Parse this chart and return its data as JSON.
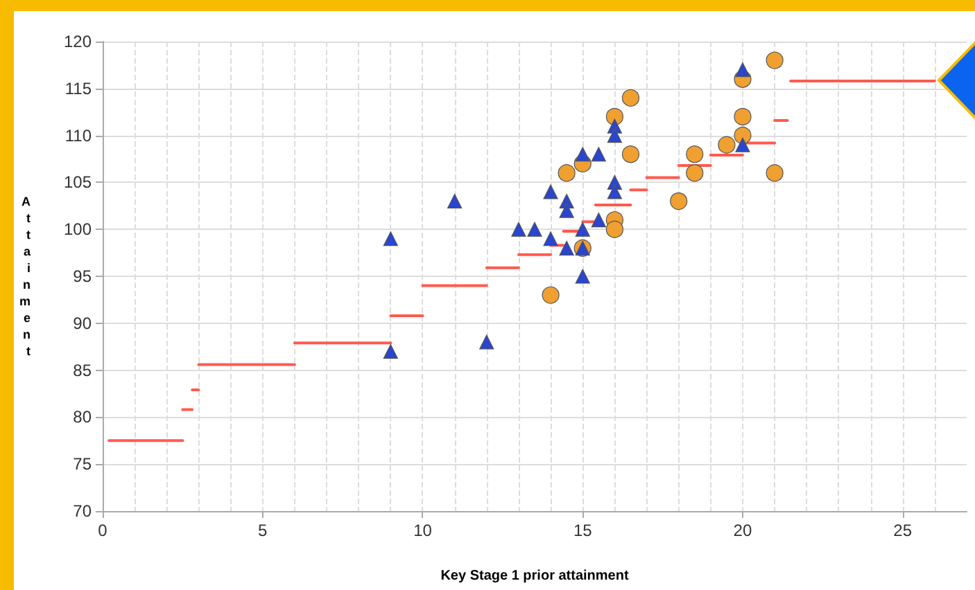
{
  "chart_data": {
    "type": "scatter",
    "xlabel": "Key Stage 1 prior attainment",
    "ylabel": "Attainment",
    "xlim": [
      0,
      27
    ],
    "xticks": [
      0,
      5,
      10,
      15,
      20,
      25
    ],
    "ylim": [
      70,
      120
    ],
    "yticks": [
      70,
      75,
      80,
      85,
      90,
      95,
      100,
      105,
      110,
      115,
      120
    ],
    "grid": true,
    "series": [
      {
        "type": "line",
        "color": "#ff5a4e",
        "marker": "none",
        "line_style": "solid",
        "x": [
          0.2,
          2.5
        ],
        "values": [
          77.5,
          77.5
        ]
      },
      {
        "type": "line",
        "color": "#ff5a4e",
        "marker": "none",
        "line_style": "solid",
        "x": [
          2.5,
          2.8
        ],
        "values": [
          80.8,
          80.8
        ]
      },
      {
        "type": "line",
        "color": "#ff5a4e",
        "marker": "none",
        "line_style": "solid",
        "x": [
          2.8,
          3
        ],
        "values": [
          82.9,
          82.9
        ]
      },
      {
        "type": "line",
        "color": "#ff5a4e",
        "marker": "none",
        "line_style": "solid",
        "x": [
          3,
          6
        ],
        "values": [
          85.6,
          85.6
        ]
      },
      {
        "type": "line",
        "color": "#ff5a4e",
        "marker": "none",
        "line_style": "solid",
        "x": [
          6,
          9
        ],
        "values": [
          87.9,
          87.9
        ]
      },
      {
        "type": "line",
        "color": "#ff5a4e",
        "marker": "none",
        "line_style": "solid",
        "x": [
          9,
          10
        ],
        "values": [
          90.8,
          90.8
        ]
      },
      {
        "type": "line",
        "color": "#ff5a4e",
        "marker": "none",
        "line_style": "solid",
        "x": [
          10,
          12
        ],
        "values": [
          94,
          94
        ]
      },
      {
        "type": "line",
        "color": "#ff5a4e",
        "marker": "none",
        "line_style": "solid",
        "x": [
          12,
          13
        ],
        "values": [
          95.9,
          95.9
        ]
      },
      {
        "type": "line",
        "color": "#ff5a4e",
        "marker": "none",
        "line_style": "solid",
        "x": [
          13,
          14
        ],
        "values": [
          97.3,
          97.3
        ]
      },
      {
        "type": "line",
        "color": "#ff5a4e",
        "marker": "none",
        "line_style": "solid",
        "x": [
          14,
          14.4
        ],
        "values": [
          98.3,
          98.3
        ]
      },
      {
        "type": "line",
        "color": "#ff5a4e",
        "marker": "none",
        "line_style": "solid",
        "x": [
          14.4,
          15
        ],
        "values": [
          99.8,
          99.8
        ]
      },
      {
        "type": "line",
        "color": "#ff5a4e",
        "marker": "none",
        "line_style": "solid",
        "x": [
          15,
          15.5
        ],
        "values": [
          100.8,
          100.8
        ]
      },
      {
        "type": "line",
        "color": "#ff5a4e",
        "marker": "none",
        "line_style": "solid",
        "x": [
          15.4,
          16.5
        ],
        "values": [
          102.6,
          102.6
        ]
      },
      {
        "type": "line",
        "color": "#ff5a4e",
        "marker": "none",
        "line_style": "solid",
        "x": [
          16.5,
          17
        ],
        "values": [
          104.2,
          104.2
        ]
      },
      {
        "type": "line",
        "color": "#ff5a4e",
        "marker": "none",
        "line_style": "solid",
        "x": [
          17,
          18
        ],
        "values": [
          105.5,
          105.5
        ]
      },
      {
        "type": "line",
        "color": "#ff5a4e",
        "marker": "none",
        "line_style": "solid",
        "x": [
          18,
          19
        ],
        "values": [
          106.8,
          106.8
        ]
      },
      {
        "type": "line",
        "color": "#ff5a4e",
        "marker": "none",
        "line_style": "solid",
        "x": [
          19,
          20
        ],
        "values": [
          107.9,
          107.9
        ]
      },
      {
        "type": "line",
        "color": "#ff5a4e",
        "marker": "none",
        "line_style": "solid",
        "x": [
          20,
          21
        ],
        "values": [
          109.2,
          109.2
        ]
      },
      {
        "type": "line",
        "color": "#ff5a4e",
        "marker": "none",
        "line_style": "solid",
        "x": [
          21,
          21.4
        ],
        "values": [
          111.6,
          111.6
        ]
      },
      {
        "type": "line",
        "color": "#ff5a4e",
        "marker": "none",
        "line_style": "solid",
        "x": [
          21.5,
          26
        ],
        "values": [
          115.8,
          115.8
        ]
      },
      {
        "color": "#f0a030",
        "marker": "circle",
        "x": [
          14,
          14.5,
          15,
          15,
          16,
          16,
          16,
          16.5,
          16.5,
          18,
          18.5,
          18.5,
          19.5,
          20,
          20,
          20,
          21,
          21
        ],
        "values": [
          93,
          106,
          107,
          98,
          112,
          101,
          100,
          114,
          108,
          103,
          108,
          106,
          109,
          116,
          112,
          110,
          118,
          106
        ]
      },
      {
        "color": "#2a45d0",
        "marker": "triangle",
        "x": [
          9,
          9,
          11,
          12,
          13,
          13.5,
          14,
          14,
          14.5,
          14.5,
          14.5,
          15,
          15,
          15,
          15,
          15.5,
          15.5,
          16,
          16,
          16,
          16,
          20,
          20
        ],
        "values": [
          99,
          87,
          103,
          88,
          100,
          100,
          99,
          104,
          103,
          102,
          98,
          108,
          100,
          98,
          95,
          108,
          101,
          111,
          110,
          105,
          104,
          117,
          109
        ]
      }
    ]
  }
}
